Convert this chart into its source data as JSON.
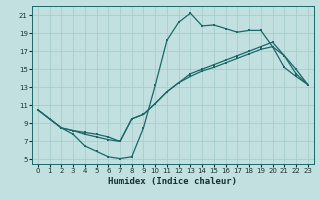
{
  "xlabel": "Humidex (Indice chaleur)",
  "bg_color": "#c2e0e0",
  "grid_color": "#a8cccc",
  "line_color": "#1a6868",
  "xlim": [
    -0.5,
    23.5
  ],
  "ylim": [
    4.5,
    22
  ],
  "xticks": [
    0,
    1,
    2,
    3,
    4,
    5,
    6,
    7,
    8,
    9,
    10,
    11,
    12,
    13,
    14,
    15,
    16,
    17,
    18,
    19,
    20,
    21,
    22,
    23
  ],
  "yticks": [
    5,
    7,
    9,
    11,
    13,
    15,
    17,
    19,
    21
  ],
  "line1_x": [
    0,
    1,
    2,
    3,
    4,
    5,
    6,
    7,
    8,
    9,
    10,
    11,
    12,
    13,
    14,
    15,
    16,
    17,
    18,
    19,
    20,
    21,
    22,
    23
  ],
  "line1_y": [
    10.5,
    9.5,
    8.5,
    7.8,
    6.5,
    5.9,
    5.3,
    5.1,
    5.3,
    8.5,
    13.2,
    18.2,
    20.2,
    21.2,
    19.8,
    19.9,
    19.5,
    19.1,
    19.3,
    19.3,
    17.5,
    15.2,
    14.2,
    13.3
  ],
  "line2_x": [
    0,
    1,
    2,
    3,
    4,
    5,
    6,
    7,
    8,
    9,
    10,
    11,
    12,
    13,
    14,
    15,
    16,
    17,
    18,
    19,
    20,
    21,
    22,
    23
  ],
  "line2_y": [
    10.5,
    9.5,
    8.5,
    8.2,
    7.8,
    7.5,
    7.2,
    7.0,
    9.5,
    10.0,
    11.2,
    12.5,
    13.5,
    14.2,
    14.8,
    15.2,
    15.7,
    16.2,
    16.7,
    17.2,
    17.5,
    16.5,
    14.5,
    13.3
  ],
  "line3_x": [
    0,
    1,
    2,
    3,
    4,
    5,
    6,
    7,
    8,
    9,
    10,
    11,
    12,
    13,
    14,
    15,
    16,
    17,
    18,
    19,
    20,
    21,
    22,
    23
  ],
  "line3_y": [
    10.5,
    9.5,
    8.5,
    8.2,
    8.0,
    7.8,
    7.5,
    7.0,
    9.5,
    10.0,
    11.2,
    12.5,
    13.5,
    14.5,
    15.0,
    15.5,
    16.0,
    16.5,
    17.0,
    17.5,
    18.0,
    16.5,
    15.0,
    13.3
  ]
}
